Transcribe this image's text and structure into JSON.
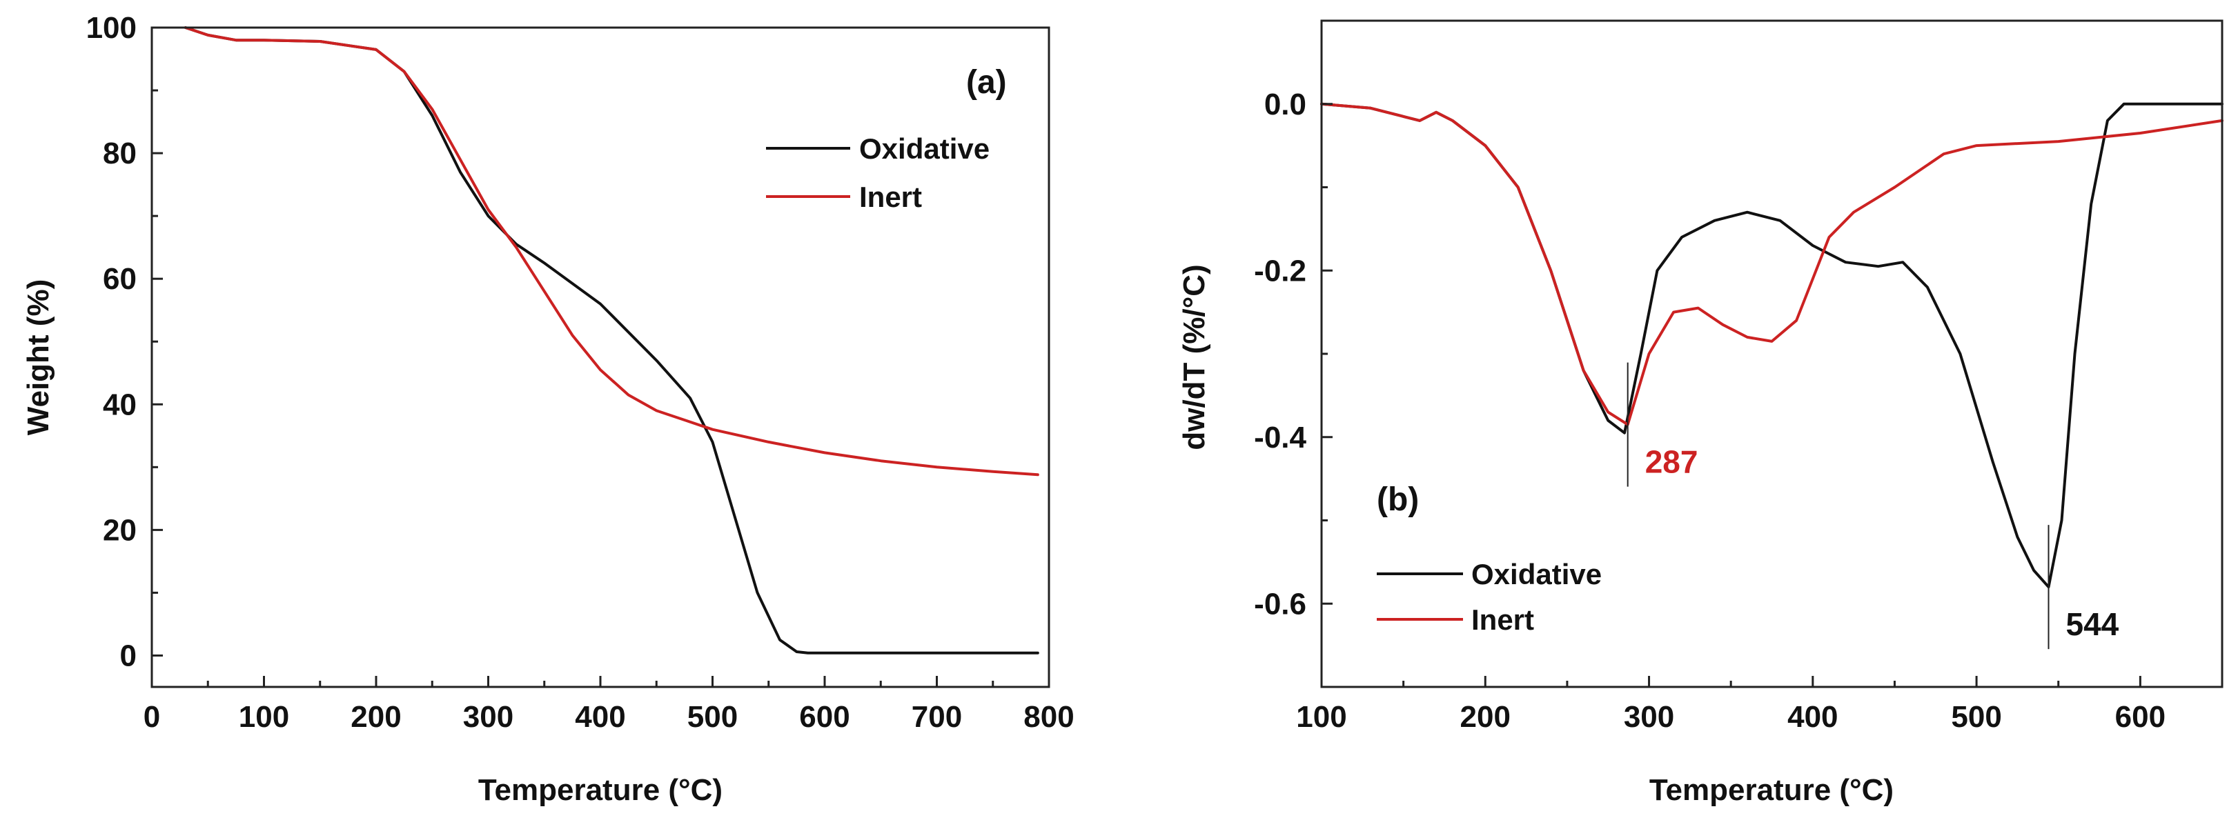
{
  "colors": {
    "oxidative": "#111111",
    "inert": "#cc2222"
  },
  "chart_data": [
    {
      "panel": "(a)",
      "type": "line",
      "xlabel": "Temperature (°C)",
      "ylabel": "Weight (%)",
      "xlim": [
        0,
        800
      ],
      "ylim": [
        -5,
        100
      ],
      "xticks": [
        0,
        100,
        200,
        300,
        400,
        500,
        600,
        700,
        800
      ],
      "yticks": [
        0,
        20,
        40,
        60,
        80,
        100
      ],
      "legend_position": "top-right",
      "series": [
        {
          "name": "Oxidative",
          "color": "#111111",
          "x": [
            30,
            50,
            75,
            100,
            150,
            200,
            225,
            250,
            275,
            300,
            325,
            350,
            400,
            450,
            480,
            500,
            520,
            540,
            560,
            575,
            585,
            600,
            700,
            790
          ],
          "y": [
            100,
            98.8,
            98,
            98,
            97.8,
            96.5,
            93,
            86,
            77,
            70,
            65.5,
            62.5,
            56,
            47,
            41,
            34,
            22,
            10,
            2.5,
            0.6,
            0.4,
            0.4,
            0.4,
            0.4
          ]
        },
        {
          "name": "Inert",
          "color": "#cc2222",
          "x": [
            30,
            50,
            75,
            100,
            150,
            200,
            225,
            250,
            275,
            300,
            325,
            350,
            375,
            400,
            425,
            450,
            475,
            500,
            550,
            600,
            650,
            700,
            750,
            790
          ],
          "y": [
            100,
            98.8,
            98,
            98,
            97.8,
            96.5,
            93,
            87,
            79,
            71,
            65,
            58,
            51,
            45.5,
            41.5,
            39,
            37.5,
            36,
            34,
            32.3,
            31,
            30,
            29.3,
            28.8
          ]
        }
      ]
    },
    {
      "panel": "(b)",
      "type": "line",
      "xlabel": "Temperature (°C)",
      "ylabel": "dw/dT (%/°C)",
      "xlim": [
        100,
        650
      ],
      "ylim": [
        -0.7,
        0.1
      ],
      "xticks": [
        100,
        200,
        300,
        400,
        500,
        600
      ],
      "yticks": [
        0.0,
        -0.2,
        -0.4,
        -0.6
      ],
      "ytick_labels": [
        "0.0",
        "-0.2",
        "-0.4",
        "-0.6"
      ],
      "legend_position": "bottom-left",
      "annotations": [
        {
          "text": "287",
          "x": 287,
          "series": "Inert"
        },
        {
          "text": "544",
          "x": 544,
          "series": "Oxidative"
        }
      ],
      "series": [
        {
          "name": "Oxidative",
          "color": "#111111",
          "x": [
            100,
            130,
            150,
            160,
            170,
            180,
            200,
            220,
            240,
            260,
            275,
            285,
            295,
            305,
            320,
            340,
            360,
            380,
            400,
            420,
            440,
            455,
            470,
            490,
            510,
            525,
            535,
            544,
            552,
            560,
            570,
            580,
            590,
            600,
            650
          ],
          "y": [
            0.0,
            -0.005,
            -0.015,
            -0.02,
            -0.01,
            -0.02,
            -0.05,
            -0.1,
            -0.2,
            -0.32,
            -0.38,
            -0.395,
            -0.3,
            -0.2,
            -0.16,
            -0.14,
            -0.13,
            -0.14,
            -0.17,
            -0.19,
            -0.195,
            -0.19,
            -0.22,
            -0.3,
            -0.43,
            -0.52,
            -0.56,
            -0.58,
            -0.5,
            -0.3,
            -0.12,
            -0.02,
            0.0,
            0.0,
            0.0
          ]
        },
        {
          "name": "Inert",
          "color": "#cc2222",
          "x": [
            100,
            130,
            150,
            160,
            170,
            180,
            200,
            220,
            240,
            260,
            275,
            287,
            300,
            315,
            330,
            345,
            360,
            375,
            390,
            400,
            410,
            425,
            450,
            480,
            500,
            550,
            600,
            650
          ],
          "y": [
            0.0,
            -0.005,
            -0.015,
            -0.02,
            -0.01,
            -0.02,
            -0.05,
            -0.1,
            -0.2,
            -0.32,
            -0.37,
            -0.385,
            -0.3,
            -0.25,
            -0.245,
            -0.265,
            -0.28,
            -0.285,
            -0.26,
            -0.21,
            -0.16,
            -0.13,
            -0.1,
            -0.06,
            -0.05,
            -0.045,
            -0.035,
            -0.02
          ]
        }
      ]
    }
  ]
}
